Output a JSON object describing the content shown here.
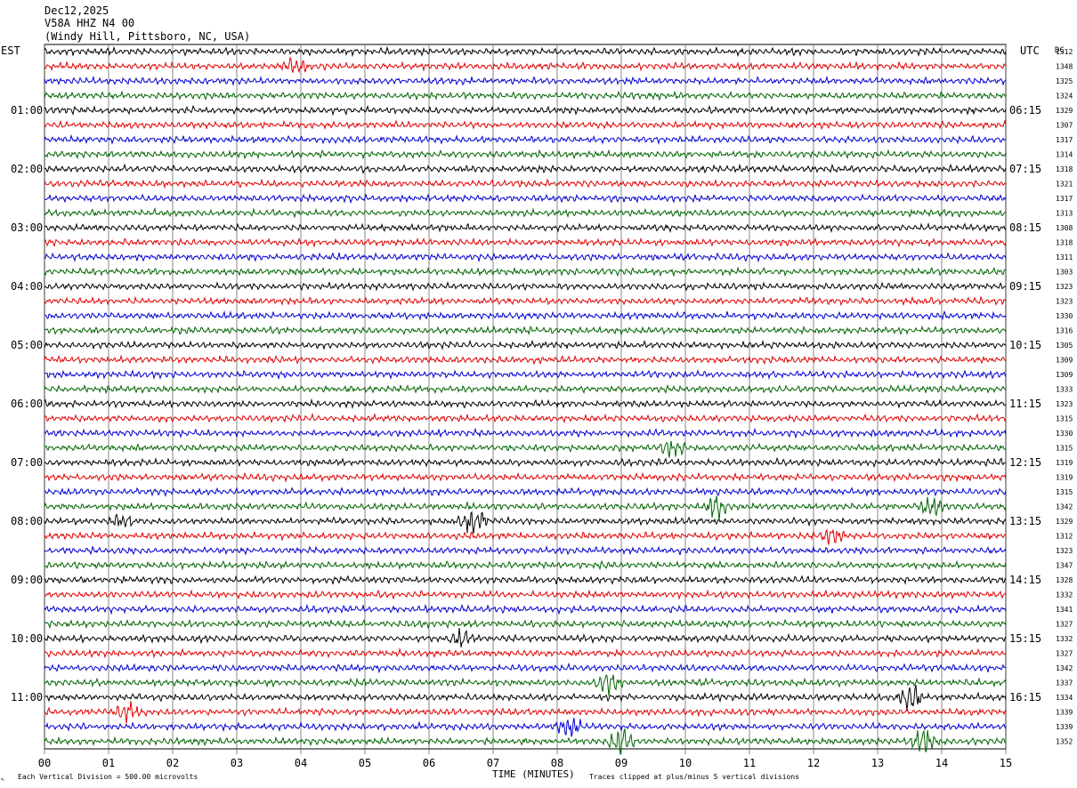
{
  "header": {
    "date": "Dec12,2025",
    "station": "V58A HHZ N4 00",
    "location": "(Windy Hill, Pittsboro, NC, USA)"
  },
  "left_timezone": "EST",
  "right_timezone": "UTC",
  "dc_label": "DC",
  "footer": {
    "scale_note": "Each Vertical Division =  500.00 microvolts",
    "axis_title": "TIME (MINUTES)",
    "clip_note": "Traces clipped at plus/minus 5 vertical divisions"
  },
  "chart_data": {
    "type": "line",
    "title": "Dec12,2025",
    "xlabel": "TIME (MINUTES)",
    "ylabel": "",
    "xlim": [
      0,
      15
    ],
    "x_tick_labels": [
      "00",
      "01",
      "02",
      "03",
      "04",
      "05",
      "06",
      "07",
      "08",
      "09",
      "10",
      "11",
      "12",
      "13",
      "14",
      "15"
    ],
    "grid": "vertical lines at each minute",
    "trace_colors": [
      "#000000",
      "#e00000",
      "#0000d0",
      "#006400"
    ],
    "left_hour_labels": [
      "01:00",
      "02:00",
      "03:00",
      "04:00",
      "05:00",
      "06:00",
      "07:00",
      "08:00",
      "09:00",
      "10:00",
      "11:00"
    ],
    "right_hour_labels": [
      "06:15",
      "07:15",
      "08:15",
      "09:15",
      "10:15",
      "11:15",
      "12:15",
      "13:15",
      "14:15",
      "15:15",
      "16:15"
    ],
    "dc_offsets": [
      1312,
      1348,
      1325,
      1324,
      1329,
      1307,
      1317,
      1314,
      1318,
      1321,
      1317,
      1313,
      1308,
      1318,
      1311,
      1303,
      1323,
      1323,
      1330,
      1316,
      1305,
      1309,
      1309,
      1333,
      1323,
      1315,
      1330,
      1315,
      1319,
      1319,
      1315,
      1342,
      1329,
      1312,
      1323,
      1347,
      1328,
      1332,
      1341,
      1327,
      1332,
      1327,
      1342,
      1337,
      1334,
      1339,
      1339,
      1352
    ],
    "events": [
      {
        "trace": 1,
        "minute": 3.9,
        "amp": 0.8
      },
      {
        "trace": 27,
        "minute": 9.8,
        "amp": 1.0
      },
      {
        "trace": 31,
        "minute": 10.5,
        "amp": 1.4
      },
      {
        "trace": 31,
        "minute": 13.85,
        "amp": 1.2
      },
      {
        "trace": 32,
        "minute": 1.2,
        "amp": 0.9
      },
      {
        "trace": 32,
        "minute": 6.7,
        "amp": 2.2
      },
      {
        "trace": 33,
        "minute": 12.3,
        "amp": 0.9
      },
      {
        "trace": 40,
        "minute": 6.5,
        "amp": 1.0
      },
      {
        "trace": 43,
        "minute": 8.8,
        "amp": 1.3
      },
      {
        "trace": 44,
        "minute": 13.5,
        "amp": 1.8
      },
      {
        "trace": 45,
        "minute": 1.3,
        "amp": 1.4
      },
      {
        "trace": 46,
        "minute": 8.2,
        "amp": 1.5
      },
      {
        "trace": 47,
        "minute": 9.0,
        "amp": 1.6
      },
      {
        "trace": 47,
        "minute": 13.7,
        "amp": 2.0
      }
    ]
  }
}
